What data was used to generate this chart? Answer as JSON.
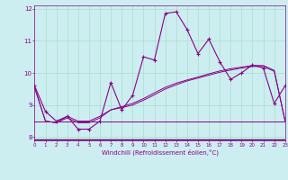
{
  "xlabel": "Windchill (Refroidissement éolien,°C)",
  "bg_color": "#cceef0",
  "grid_color": "#aaddcc",
  "line_color": "#880088",
  "axis_bar_color": "#660066",
  "xlim": [
    0,
    23
  ],
  "ylim": [
    7.9,
    12.1
  ],
  "yticks": [
    8,
    9,
    10,
    11,
    12
  ],
  "xticks": [
    0,
    1,
    2,
    3,
    4,
    5,
    6,
    7,
    8,
    9,
    10,
    11,
    12,
    13,
    14,
    15,
    16,
    17,
    18,
    19,
    20,
    21,
    22,
    23
  ],
  "s1x": [
    0,
    1,
    2,
    3,
    4,
    5,
    6,
    7,
    8,
    9,
    10,
    11,
    12,
    13,
    14,
    15,
    16,
    17,
    18,
    19,
    20,
    21,
    22,
    23
  ],
  "s1y": [
    9.6,
    8.8,
    8.5,
    8.65,
    8.25,
    8.25,
    8.5,
    9.7,
    8.85,
    9.3,
    10.5,
    10.4,
    11.85,
    11.9,
    11.35,
    10.6,
    11.05,
    10.35,
    9.8,
    10.0,
    10.25,
    10.15,
    9.05,
    9.6
  ],
  "s2x": [
    0,
    1,
    2,
    3,
    4,
    5,
    6,
    7,
    8,
    9,
    10,
    11,
    12,
    13,
    14,
    15,
    16,
    17,
    18,
    19,
    20,
    21,
    22,
    23
  ],
  "s2y": [
    9.55,
    8.5,
    8.45,
    8.65,
    8.5,
    8.5,
    8.65,
    8.85,
    8.95,
    9.05,
    9.2,
    9.38,
    9.55,
    9.68,
    9.78,
    9.87,
    9.97,
    10.06,
    10.13,
    10.18,
    10.23,
    10.23,
    10.08,
    8.5
  ],
  "s3x": [
    0,
    1,
    2,
    3,
    4,
    5,
    6,
    7,
    8,
    9,
    10,
    11,
    12,
    13,
    14,
    15,
    16,
    17,
    18,
    19,
    20,
    21,
    22,
    23
  ],
  "s3y": [
    9.55,
    8.5,
    8.45,
    8.6,
    8.45,
    8.45,
    8.6,
    8.85,
    8.92,
    9.0,
    9.15,
    9.32,
    9.5,
    9.63,
    9.75,
    9.84,
    9.93,
    10.02,
    10.09,
    10.15,
    10.2,
    10.2,
    10.05,
    8.5
  ],
  "s4x": [
    0,
    1,
    2,
    3,
    4,
    5,
    6,
    7,
    8,
    9,
    10,
    11,
    12,
    13,
    14,
    15,
    16,
    17,
    18,
    19,
    20,
    21,
    22,
    23
  ],
  "s4y": [
    8.5,
    8.5,
    8.5,
    8.5,
    8.5,
    8.5,
    8.5,
    8.5,
    8.5,
    8.5,
    8.5,
    8.5,
    8.5,
    8.5,
    8.5,
    8.5,
    8.5,
    8.5,
    8.5,
    8.5,
    8.5,
    8.5,
    8.5,
    8.5
  ]
}
